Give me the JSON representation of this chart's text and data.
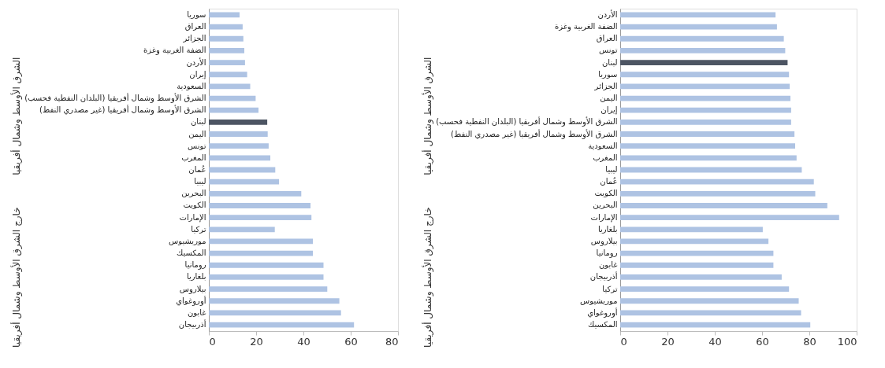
{
  "chart_data": [
    {
      "type": "bar",
      "orientation": "horizontal",
      "categories": [
        "سوريا",
        "العراق",
        "الجزائر",
        "الضفة الغربية وغزة",
        "الأردن",
        "إيران",
        "السعودية",
        "الشرق الأوسط وشمال أفريقيا (البلدان النفطية فحسب)",
        "الشرق الأوسط وشمال أفريقيا (غير مصدري النفط)",
        "لبنان",
        "اليمن",
        "تونس",
        "المغرب",
        "عُمان",
        "ليبيا",
        "البحرين",
        "الكويت",
        "الإمارات",
        "تركيا",
        "موريشيوس",
        "المكسيك",
        "رومانيا",
        "بلغاريا",
        "بيلاروس",
        "أوروغواي",
        "غابون",
        "أذربيجان"
      ],
      "values": [
        13.0,
        14.3,
        14.6,
        15.0,
        15.3,
        16.2,
        17.5,
        19.8,
        21.0,
        24.7,
        24.9,
        25.3,
        26.0,
        28.1,
        29.7,
        39.1,
        43.0,
        43.4,
        27.9,
        44.0,
        44.0,
        48.5,
        48.5,
        50.1,
        55.2,
        55.9,
        61.4
      ],
      "colors": [
        "#aec3e3",
        "#aec3e3",
        "#aec3e3",
        "#aec3e3",
        "#aec3e3",
        "#aec3e3",
        "#aec3e3",
        "#aec3e3",
        "#aec3e3",
        "#4d5563",
        "#aec3e3",
        "#aec3e3",
        "#aec3e3",
        "#aec3e3",
        "#aec3e3",
        "#aec3e3",
        "#aec3e3",
        "#aec3e3",
        "#aec3e3",
        "#aec3e3",
        "#aec3e3",
        "#aec3e3",
        "#aec3e3",
        "#aec3e3",
        "#aec3e3",
        "#aec3e3",
        "#aec3e3"
      ],
      "xlim": [
        0,
        80
      ],
      "xticks": [
        0,
        20,
        40,
        60,
        80
      ],
      "grid": false,
      "annotations": [
        "الشرق الأوسط وشمال أفريقيا",
        "خارج الشرق الأوسط وشمال أفريقيا"
      ]
    },
    {
      "type": "bar",
      "orientation": "horizontal",
      "categories": [
        "الأردن",
        "الضفة الغربية وغزة",
        "العراق",
        "تونس",
        "لبنان",
        "سوريا",
        "الجزائر",
        "اليمن",
        "إيران",
        "الشرق الأوسط وشمال أفريقيا (البلدان النفطية فحسب)",
        "الشرق الأوسط وشمال أفريقيا (غير مصدري النفط)",
        "السعودية",
        "المغرب",
        "ليبيا",
        "عُمان",
        "الكويت",
        "البحرين",
        "الإمارات",
        "بلغاريا",
        "بيلاروس",
        "رومانيا",
        "غابون",
        "أذربيجان",
        "تركيا",
        "موريشيوس",
        "أوروغواي",
        "المكسيك"
      ],
      "values": [
        65.7,
        66.3,
        69.2,
        69.8,
        70.8,
        71.4,
        71.7,
        72.0,
        72.3,
        72.3,
        73.7,
        74.0,
        74.6,
        76.8,
        81.9,
        82.5,
        87.6,
        92.6,
        60.3,
        62.7,
        64.8,
        64.8,
        68.3,
        71.4,
        75.5,
        76.5,
        80.4
      ],
      "colors": [
        "#aec3e3",
        "#aec3e3",
        "#aec3e3",
        "#aec3e3",
        "#4d5563",
        "#aec3e3",
        "#aec3e3",
        "#aec3e3",
        "#aec3e3",
        "#aec3e3",
        "#aec3e3",
        "#aec3e3",
        "#aec3e3",
        "#aec3e3",
        "#aec3e3",
        "#aec3e3",
        "#aec3e3",
        "#aec3e3",
        "#aec3e3",
        "#aec3e3",
        "#aec3e3",
        "#aec3e3",
        "#aec3e3",
        "#aec3e3",
        "#aec3e3",
        "#aec3e3",
        "#aec3e3"
      ],
      "xlim": [
        0,
        100
      ],
      "xticks": [
        0,
        20,
        40,
        60,
        80,
        100
      ],
      "grid": false,
      "annotations": [
        "الشرق الأوسط وشمال أفريقيا",
        "خارج الشرق الأوسط وشمال أفريقيا"
      ]
    }
  ]
}
